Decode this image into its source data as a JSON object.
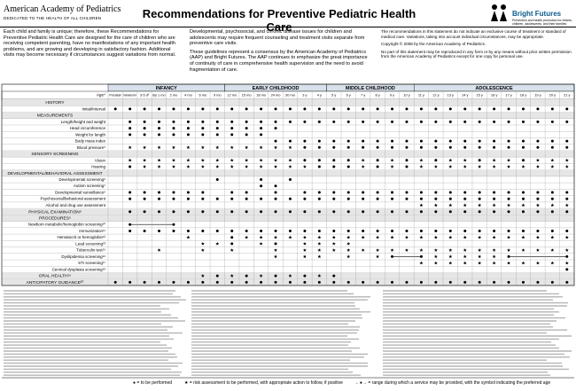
{
  "header": {
    "org": "American Academy of Pediatrics",
    "org_tagline": "DEDICATED TO THE HEALTH OF ALL CHILDREN",
    "title": "Recommendations for Preventive Pediatric Health Care",
    "brand": "Bright Futures",
    "brand_tagline": "Prevention and health promotion for infants, children, adolescents, and their families"
  },
  "intro": {
    "col1": "Each child and family is unique; therefore, these Recommendations for Preventive Pediatric Health Care are designed for the care of children who are receiving competent parenting, have no manifestations of any important health problems, and are growing and developing in satisfactory fashion. Additional visits may become necessary if circumstances suggest variations from normal.",
    "col2a": "Developmental, psychosocial, and chronic disease issues for children and adolescents may require frequent counseling and treatment visits separate from preventive care visits.",
    "col2b": "These guidelines represent a consensus by the American Academy of Pediatrics (AAP) and Bright Futures. The AAP continues to emphasize the great importance of continuity of care in comprehensive health supervision and the need to avoid fragmentation of care.",
    "col3a": "The recommendations in this statement do not indicate an exclusive course of treatment or standard of medical care. Variations, taking into account individual circumstances, may be appropriate.",
    "col3b": "Copyright © 2008 by the American Academy of Pediatrics.",
    "col3c": "No part of this statement may be reproduced in any form or by any means without prior written permission from the American Academy of Pediatrics except for one copy for personal use."
  },
  "table": {
    "age_label": "Age⁴",
    "groups": [
      {
        "label": "INFANCY",
        "span": 8
      },
      {
        "label": "EARLY CHILDHOOD",
        "span": 7
      },
      {
        "label": "MIDDLE CHILDHOOD",
        "span": 6
      },
      {
        "label": "ADOLESCENCE",
        "span": 11
      }
    ],
    "ages": [
      "Prenatal¹",
      "Newborn²",
      "3-5 d³",
      "By 1 mo",
      "2 mo",
      "4 mo",
      "6 mo",
      "9 mo",
      "12 mo",
      "15 mo",
      "18 mo",
      "24 mo",
      "30 mo",
      "3 y",
      "4 y",
      "5 y",
      "6 y",
      "7 y",
      "8 y",
      "9 y",
      "10 y",
      "11 y",
      "12 y",
      "13 y",
      "14 y",
      "15 y",
      "16 y",
      "17 y",
      "18 y",
      "19 y",
      "20 y",
      "21 y"
    ],
    "rows": [
      {
        "label": "HISTORY",
        "section": true
      },
      {
        "label": "Initial/Interval",
        "cells": "oooooooooooooooooooooooooooooooo"
      },
      {
        "label": "MEASUREMENTS",
        "section": true
      },
      {
        "label": "Length/height and weight",
        "cells": ".ooooooooooooooooooooooooooooooo"
      },
      {
        "label": "Head circumference",
        "cells": ".ooooooooooo...................."
      },
      {
        "label": "Weight for length",
        "cells": ".oooooooooo....................."
      },
      {
        "label": "Body mass index",
        "cells": "...........ooooooooooooooooooooo"
      },
      {
        "label": "Blood pressure⁵",
        "cells": ".************ooooooooooooooooooo"
      },
      {
        "label": "SENSORY SCREENING",
        "section": true
      },
      {
        "label": "Vision",
        "cells": ".************oooo*o*o*o**o**o***"
      },
      {
        "label": "Hearing",
        "cells": ".o************ooo*o*o***********"
      },
      {
        "label": "DEVELOPMENTAL/BEHAVIORAL ASSESSMENT",
        "section": true
      },
      {
        "label": "Developmental screening⁶",
        "cells": ".......o..o.o..................."
      },
      {
        "label": "Autism screening⁷",
        "cells": "..........oo...................."
      },
      {
        "label": "Developmental surveillance⁶",
        "cells": ".oooooo.oo.o.ooooooooooooooooooo"
      },
      {
        "label": "Psychosocial/behavioral assessment",
        "cells": ".ooooooooooooooooooooooooooooooo"
      },
      {
        "label": "Alcohol and drug use assessment",
        "cells": ".....................***********"
      },
      {
        "label": "PHYSICAL EXAMINATION⁸",
        "section": true,
        "cells": ".ooooooooooooooooooooooooooooooo"
      },
      {
        "label": "PROCEDURES⁹",
        "section": true
      },
      {
        "label": "Newborn metabolic/hemoglobin screening¹⁰",
        "cells": ".r--r..........................."
      },
      {
        "label": "Immunization¹¹",
        "cells": ".ooooooooooooooooooooooooooooooo"
      },
      {
        "label": "Hematocrit or hemoglobin¹²",
        "cells": ".....*..o***********************"
      },
      {
        "label": "Lead screening¹³",
        "cells": "......**o.*o.****..............."
      },
      {
        "label": "Tuberculin test¹⁵",
        "cells": "...*..*.*..*.*******************"
      },
      {
        "label": "Dyslipidemia screening¹⁶",
        "cells": "...........*.**.*.*r-r*****r---r"
      },
      {
        "label": "STI screening¹⁷",
        "cells": ".....................***********"
      },
      {
        "label": "Cervical dysplasia screening¹⁸",
        "cells": "...............................o"
      },
      {
        "label": "ORAL HEALTH¹⁹",
        "section": true,
        "cells": "......*o*o*o*o*o................"
      },
      {
        "label": "ANTICIPATORY GUIDANCE²⁰",
        "section": true,
        "cells": "oooooooooooooooooooooooooooooooo"
      }
    ]
  },
  "legend": {
    "dot": "= to be performed",
    "star": "= risk assessment to be performed, with appropriate action to follow, if positive",
    "range": "= range during which a service may be provided, with the symbol indicating the preferred age"
  }
}
